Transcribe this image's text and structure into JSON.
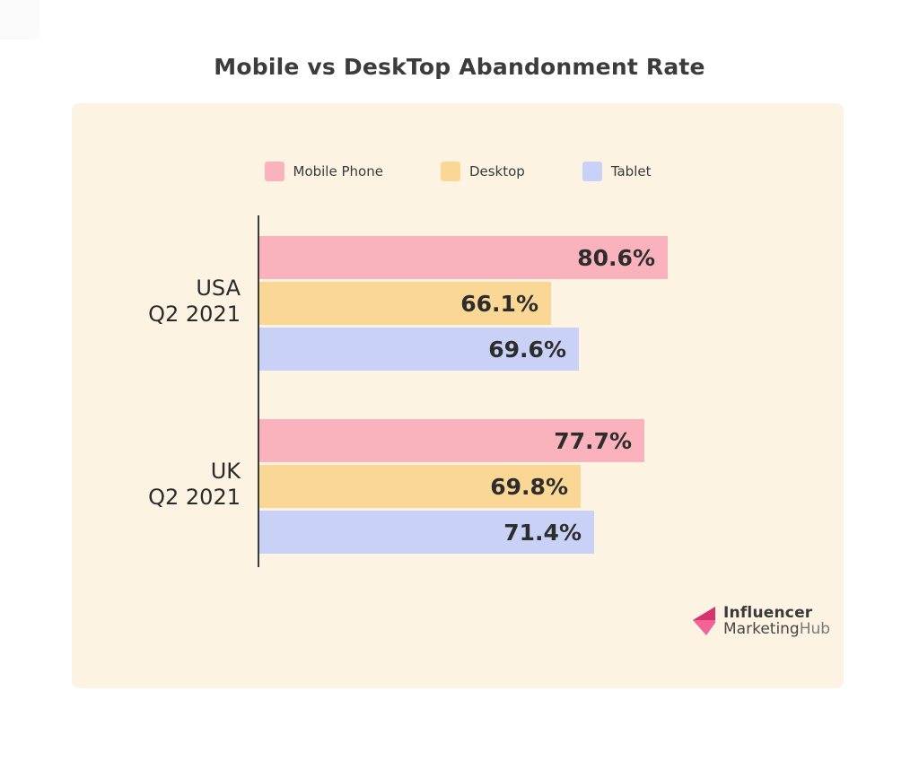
{
  "page": {
    "title": "Mobile vs DeskTop Abandonment Rate"
  },
  "chart_data": {
    "type": "bar",
    "orientation": "horizontal",
    "title": "Mobile vs DeskTop Abandonment Rate",
    "categories": [
      "USA Q2 2021",
      "UK Q2 2021"
    ],
    "category_lines": [
      [
        "USA",
        "Q2 2021"
      ],
      [
        "UK",
        "Q2 2021"
      ]
    ],
    "series": [
      {
        "name": "Mobile Phone",
        "color": "#fab3bc",
        "values": [
          80.6,
          77.7
        ]
      },
      {
        "name": "Desktop",
        "color": "#fad794",
        "values": [
          66.1,
          69.8
        ]
      },
      {
        "name": "Tablet",
        "color": "#c9d2f6",
        "values": [
          69.6,
          71.4
        ]
      }
    ],
    "value_suffix": "%",
    "value_labels": [
      [
        "80.6%",
        "66.1%",
        "69.6%"
      ],
      [
        "77.7%",
        "69.8%",
        "71.4%"
      ]
    ],
    "xlim": [
      30,
      93
    ],
    "grid": false,
    "legend_position": "top"
  },
  "logo": {
    "line1": "Influencer",
    "line2_dark": "Marketing",
    "line2_light": "Hub"
  },
  "colors": {
    "card_bg": "#fcf3e2",
    "axis": "#3b3b3b",
    "title_text": "#3c3c3c",
    "category_text": "#2b2b2b",
    "value_text": "#2d2d2d",
    "logo_arrow_dark": "#d6336c",
    "logo_arrow_light": "#f06595"
  }
}
